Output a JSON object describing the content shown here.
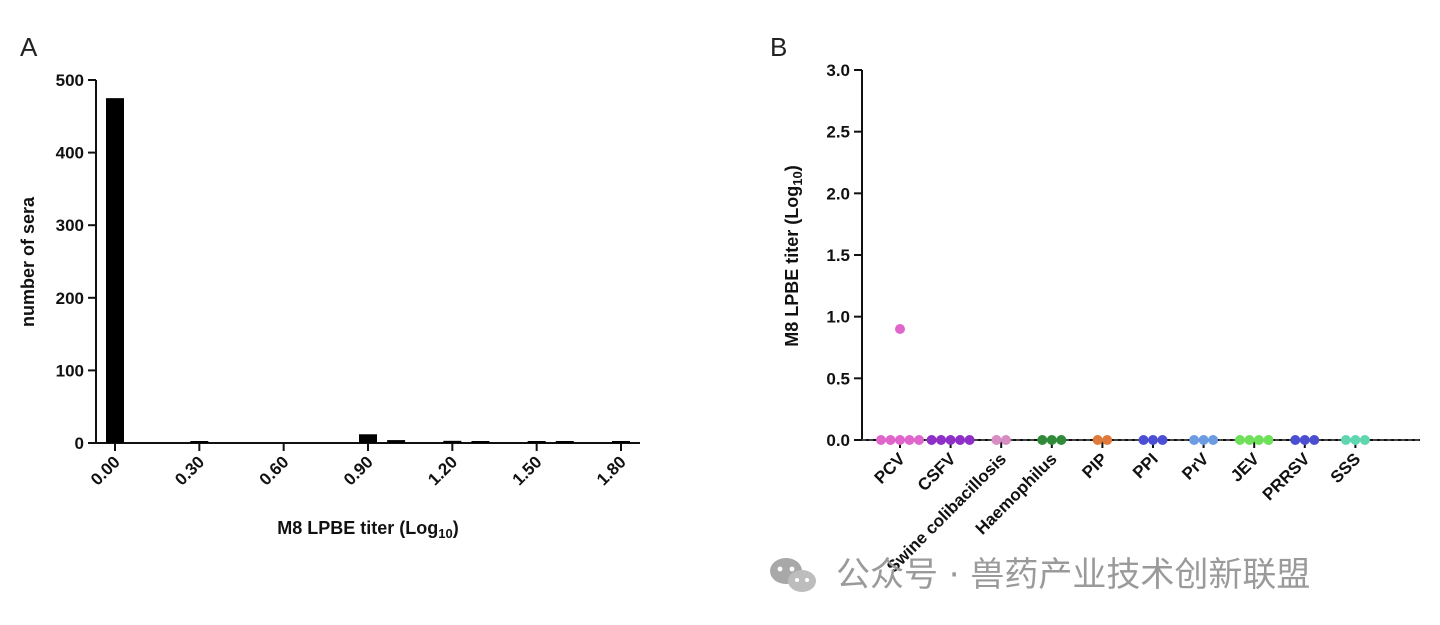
{
  "chart_data": [
    {
      "panel": "A",
      "type": "bar",
      "xlabel": "M8 LPBE titer (Log",
      "xlabel_sub": "10",
      "xlabel_tail": ")",
      "ylabel": "number of sera",
      "ylim": [
        0,
        500
      ],
      "yticks": [
        0,
        100,
        200,
        300,
        400,
        500
      ],
      "xlim": [
        0,
        1.8
      ],
      "xticks": [
        "0.00",
        "0.30",
        "0.60",
        "0.90",
        "1.20",
        "1.50",
        "1.80"
      ],
      "x": [
        0.0,
        0.3,
        0.6,
        0.9,
        1.0,
        1.2,
        1.3,
        1.5,
        1.6,
        1.8
      ],
      "values": [
        475,
        1,
        0,
        12,
        4,
        3,
        1,
        2,
        2,
        2
      ],
      "color": "#000000"
    },
    {
      "panel": "B",
      "type": "scatter",
      "ylabel": "M8 LPBE titer (Log",
      "ylabel_sub": "10",
      "ylabel_tail": ")",
      "ylim": [
        0,
        3.0
      ],
      "yticks": [
        "0.0",
        "0.5",
        "1.0",
        "1.5",
        "2.0",
        "2.5",
        "3.0"
      ],
      "reference_line": 0,
      "categories": [
        "PCV",
        "CSFV",
        "Swine colibacillosis",
        "Haemophilus",
        "PIP",
        "PPI",
        "PrV",
        "JEV",
        "PRRSV",
        "SSS"
      ],
      "series": [
        {
          "category": "PCV",
          "color": "#e066cc",
          "values": [
            0.9,
            0,
            0,
            0,
            0,
            0
          ]
        },
        {
          "category": "CSFV",
          "color": "#8e2fc7",
          "values": [
            0,
            0,
            0,
            0,
            0
          ]
        },
        {
          "category": "Swine colibacillosis",
          "color": "#d88cc4",
          "values": [
            0,
            0
          ]
        },
        {
          "category": "Haemophilus",
          "color": "#2f8a3a",
          "values": [
            0,
            0,
            0
          ]
        },
        {
          "category": "PIP",
          "color": "#e07a3a",
          "values": [
            0,
            0
          ]
        },
        {
          "category": "PPI",
          "color": "#4c4fd6",
          "values": [
            0,
            0,
            0
          ]
        },
        {
          "category": "PrV",
          "color": "#6b9be0",
          "values": [
            0,
            0,
            0
          ]
        },
        {
          "category": "JEV",
          "color": "#6fe05a",
          "values": [
            0,
            0,
            0,
            0
          ]
        },
        {
          "category": "PRRSV",
          "color": "#4a4fd0",
          "values": [
            0,
            0,
            0
          ]
        },
        {
          "category": "SSS",
          "color": "#5fd6b0",
          "values": [
            0,
            0,
            0
          ]
        }
      ]
    }
  ],
  "watermark": {
    "text": "公众号 · 兽药产业技术创新联盟",
    "icon": "wechat-icon",
    "color": "#9a9a9a"
  }
}
